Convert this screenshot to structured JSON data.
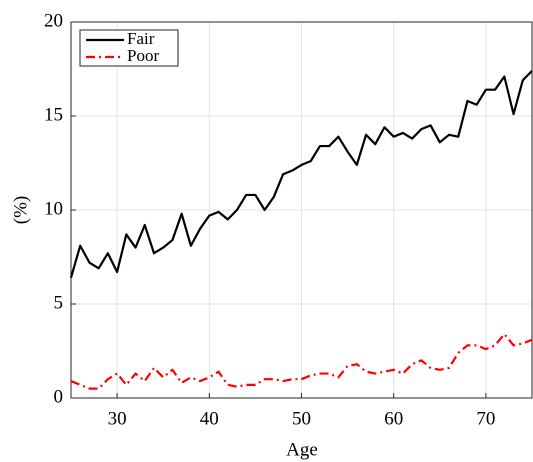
{
  "chart_data": {
    "type": "line",
    "xlabel": "Age",
    "ylabel": "(%)",
    "x": [
      25,
      26,
      27,
      28,
      29,
      30,
      31,
      32,
      33,
      34,
      35,
      36,
      37,
      38,
      39,
      40,
      41,
      42,
      43,
      44,
      45,
      46,
      47,
      48,
      49,
      50,
      51,
      52,
      53,
      54,
      55,
      56,
      57,
      58,
      59,
      60,
      61,
      62,
      63,
      64,
      65,
      66,
      67,
      68,
      69,
      70,
      71,
      72,
      73,
      74,
      75
    ],
    "series": [
      {
        "name": "Fair",
        "color": "#000000",
        "linestyle": "solid",
        "values": [
          6.4,
          8.1,
          7.2,
          6.9,
          7.7,
          6.7,
          8.7,
          8.0,
          9.2,
          7.7,
          8.0,
          8.4,
          9.8,
          8.1,
          9.0,
          9.7,
          9.9,
          9.5,
          10.0,
          10.8,
          10.8,
          10.0,
          10.7,
          11.9,
          12.1,
          12.4,
          12.6,
          13.4,
          13.4,
          13.9,
          13.1,
          12.4,
          14.0,
          13.5,
          14.4,
          13.9,
          14.1,
          13.8,
          14.3,
          14.5,
          13.6,
          14.0,
          13.9,
          15.8,
          15.6,
          16.4,
          16.4,
          17.1,
          15.1,
          16.9,
          17.4
        ]
      },
      {
        "name": "Poor",
        "color": "#ff0000",
        "linestyle": "dashdot",
        "values": [
          0.9,
          0.7,
          0.5,
          0.5,
          1.0,
          1.3,
          0.7,
          1.3,
          0.9,
          1.6,
          1.1,
          1.5,
          0.8,
          1.1,
          0.9,
          1.1,
          1.4,
          0.7,
          0.6,
          0.7,
          0.7,
          1.0,
          1.0,
          0.9,
          1.0,
          1.0,
          1.2,
          1.3,
          1.3,
          1.1,
          1.7,
          1.8,
          1.4,
          1.3,
          1.4,
          1.5,
          1.3,
          1.8,
          2.0,
          1.6,
          1.5,
          1.6,
          2.4,
          2.8,
          2.8,
          2.6,
          2.8,
          3.4,
          2.8,
          2.9,
          3.1
        ]
      }
    ],
    "xlim": [
      25,
      75
    ],
    "xticks": [
      30,
      40,
      50,
      60,
      70
    ],
    "ylim": [
      0,
      20
    ],
    "yticks": [
      0,
      5,
      10,
      15,
      20
    ],
    "grid": true,
    "legend": "upper left"
  }
}
